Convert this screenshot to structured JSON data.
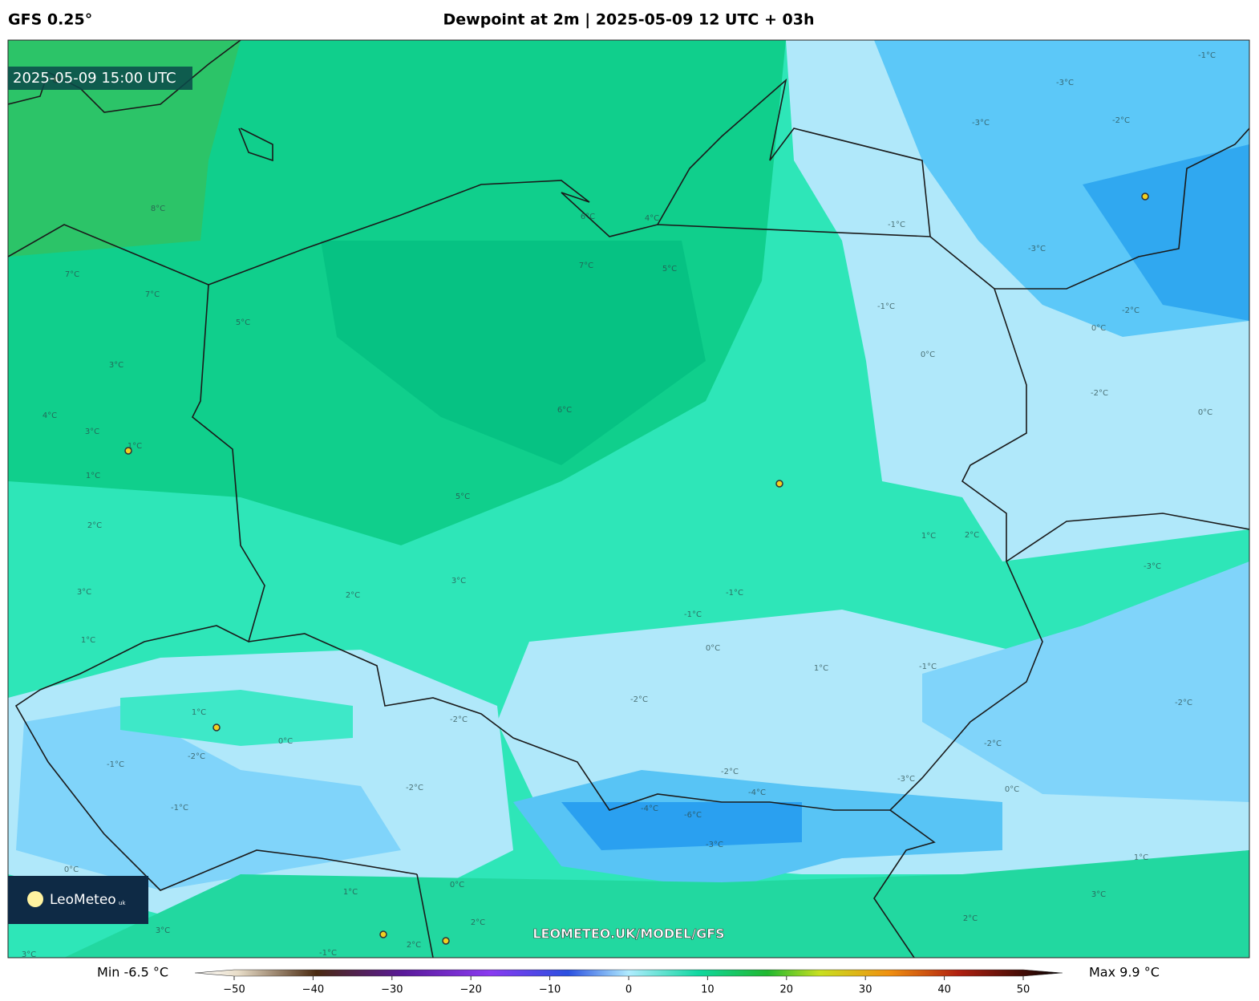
{
  "header": {
    "model": "GFS 0.25°",
    "title": "Dewpoint at 2m | 2025-05-09 12 UTC + 03h"
  },
  "map": {
    "timestamp": "2025-05-09 15:00 UTC",
    "watermark": "LEOMETEO.UK/MODEL/GFS",
    "contour_labels": [
      "8°C",
      "7°C",
      "7°C",
      "5°C",
      "3°C",
      "4°C",
      "3°C",
      "1°C",
      "1°C",
      "2°C",
      "3°C",
      "1°C",
      "6°C",
      "4°C",
      "5°C",
      "7°C",
      "6°C",
      "5°C",
      "3°C",
      "2°C",
      "-1°C",
      "-1°C",
      "0°C",
      "-2°C",
      "1°C",
      "-2°C",
      "-4°C",
      "-6°C",
      "-3°C",
      "-4°C",
      "-3°C",
      "-3°C",
      "-2°C",
      "-3°C",
      "-1°C",
      "-3°C",
      "-2°C",
      "0°C",
      "0°C",
      "-2°C",
      "0°C",
      "-1°C",
      "-1°C",
      "1°C",
      "2°C",
      "-3°C",
      "-1°C",
      "-2°C",
      "-2°C",
      "0°C",
      "1°C",
      "3°C",
      "2°C",
      "1°C",
      "-2°C",
      "-1°C",
      "-2°C",
      "-1°C",
      "-2°C",
      "0°C",
      "0°C",
      "1°C",
      "2°C",
      "2°C",
      "-1°C",
      "3°C",
      "0°C",
      "3°C"
    ]
  },
  "logo": {
    "name": "LeoMeteo",
    "suffix": "uk"
  },
  "colorbar": {
    "min_label": "Min -6.5 °C",
    "max_label": "Max 9.9 °C",
    "ticks": [
      {
        "value": -50,
        "label": "−50"
      },
      {
        "value": -40,
        "label": "−40"
      },
      {
        "value": -30,
        "label": "−30"
      },
      {
        "value": -20,
        "label": "−20"
      },
      {
        "value": -10,
        "label": "−10"
      },
      0,
      10,
      20,
      30,
      40,
      50
    ]
  }
}
